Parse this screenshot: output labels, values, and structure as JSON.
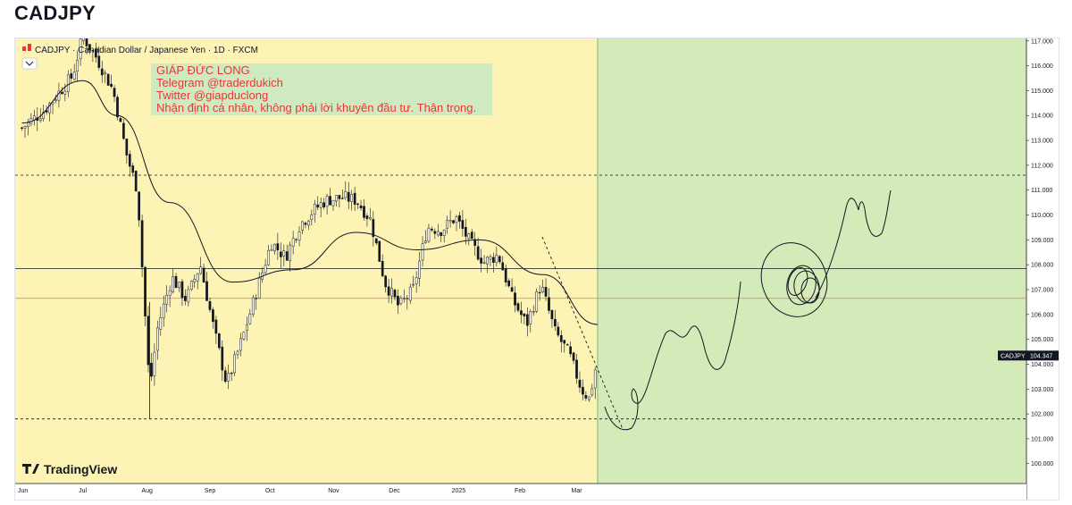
{
  "page": {
    "title": "CADJPY"
  },
  "chart_header": "CADJPY · Canadian Dollar / Japanese Yen · 1D · FXCM",
  "watermark": "TradingView",
  "price_tag": {
    "symbol": "CADJPY",
    "value": "104.347"
  },
  "annotation": {
    "lines": [
      "GIÁP ĐỨC LONG",
      "Telegram @traderdukich",
      "Twitter @giapduclong",
      "Nhận định cá nhân, không phải lời khuyên đầu tư. Thận trọng."
    ]
  },
  "colors": {
    "background": "#fdf3b4",
    "forecast_zone": "#d4eab8",
    "candle": "#131722",
    "ma": "#131722",
    "red_line": "#e57373"
  },
  "chart_data": {
    "type": "candlestick",
    "symbol": "CADJPY",
    "timeframe": "1D",
    "x_labels": [
      "Jun",
      "Jul",
      "Aug",
      "Sep",
      "Oct",
      "Nov",
      "Dec",
      "2025",
      "Feb",
      "Mar"
    ],
    "y_ticks": [
      "117.000",
      "116.000",
      "115.000",
      "114.000",
      "113.000",
      "112.000",
      "111.000",
      "110.000",
      "109.000",
      "108.000",
      "107.000",
      "106.000",
      "105.000",
      "104.000",
      "103.000",
      "102.000",
      "101.000",
      "100.000"
    ],
    "ylim": [
      99.2,
      117.1
    ],
    "last_price": 104.347,
    "close_path": [
      [
        "2024-06-03",
        113.5
      ],
      [
        "2024-06-14",
        114.2
      ],
      [
        "2024-06-28",
        115.6
      ],
      [
        "2024-07-03",
        117.2
      ],
      [
        "2024-07-10",
        116.3
      ],
      [
        "2024-07-18",
        115.0
      ],
      [
        "2024-07-25",
        112.3
      ],
      [
        "2024-07-30",
        111.0
      ],
      [
        "2024-08-05",
        103.0
      ],
      [
        "2024-08-09",
        105.5
      ],
      [
        "2024-08-16",
        107.5
      ],
      [
        "2024-08-23",
        106.6
      ],
      [
        "2024-08-30",
        108.0
      ],
      [
        "2024-09-06",
        105.3
      ],
      [
        "2024-09-12",
        103.2
      ],
      [
        "2024-09-20",
        105.1
      ],
      [
        "2024-09-27",
        107.0
      ],
      [
        "2024-10-04",
        108.9
      ],
      [
        "2024-10-11",
        108.3
      ],
      [
        "2024-10-18",
        109.6
      ],
      [
        "2024-10-25",
        110.2
      ],
      [
        "2024-10-31",
        110.6
      ],
      [
        "2024-11-08",
        110.7
      ],
      [
        "2024-11-15",
        110.6
      ],
      [
        "2024-11-22",
        109.8
      ],
      [
        "2024-11-29",
        107.3
      ],
      [
        "2024-12-06",
        106.3
      ],
      [
        "2024-12-13",
        107.0
      ],
      [
        "2024-12-20",
        109.5
      ],
      [
        "2024-12-27",
        109.4
      ],
      [
        "2025-01-03",
        109.9
      ],
      [
        "2025-01-10",
        108.9
      ],
      [
        "2025-01-17",
        108.1
      ],
      [
        "2025-01-24",
        108.4
      ],
      [
        "2025-01-31",
        106.6
      ],
      [
        "2025-02-07",
        105.6
      ],
      [
        "2025-02-14",
        107.2
      ],
      [
        "2025-02-21",
        105.3
      ],
      [
        "2025-02-28",
        104.4
      ],
      [
        "2025-03-06",
        103.0
      ],
      [
        "2025-03-10",
        102.6
      ],
      [
        "2025-03-14",
        104.3
      ]
    ],
    "moving_average": [
      [
        "2024-06-03",
        113.7
      ],
      [
        "2024-07-03",
        115.4
      ],
      [
        "2024-07-20",
        114.0
      ],
      [
        "2024-08-15",
        110.5
      ],
      [
        "2024-09-15",
        107.3
      ],
      [
        "2024-10-15",
        107.8
      ],
      [
        "2024-11-15",
        109.3
      ],
      [
        "2024-12-15",
        108.6
      ],
      [
        "2025-01-15",
        109.0
      ],
      [
        "2025-02-15",
        107.6
      ],
      [
        "2025-03-14",
        105.6
      ]
    ],
    "horizontal_lines": [
      {
        "price": 111.6,
        "style": "dashed",
        "color": "#131722"
      },
      {
        "price": 107.85,
        "style": "solid",
        "color": "#131722"
      },
      {
        "price": 106.65,
        "style": "solid",
        "color": "#e57373"
      },
      {
        "price": 101.8,
        "style": "dashed",
        "color": "#131722"
      }
    ]
  }
}
